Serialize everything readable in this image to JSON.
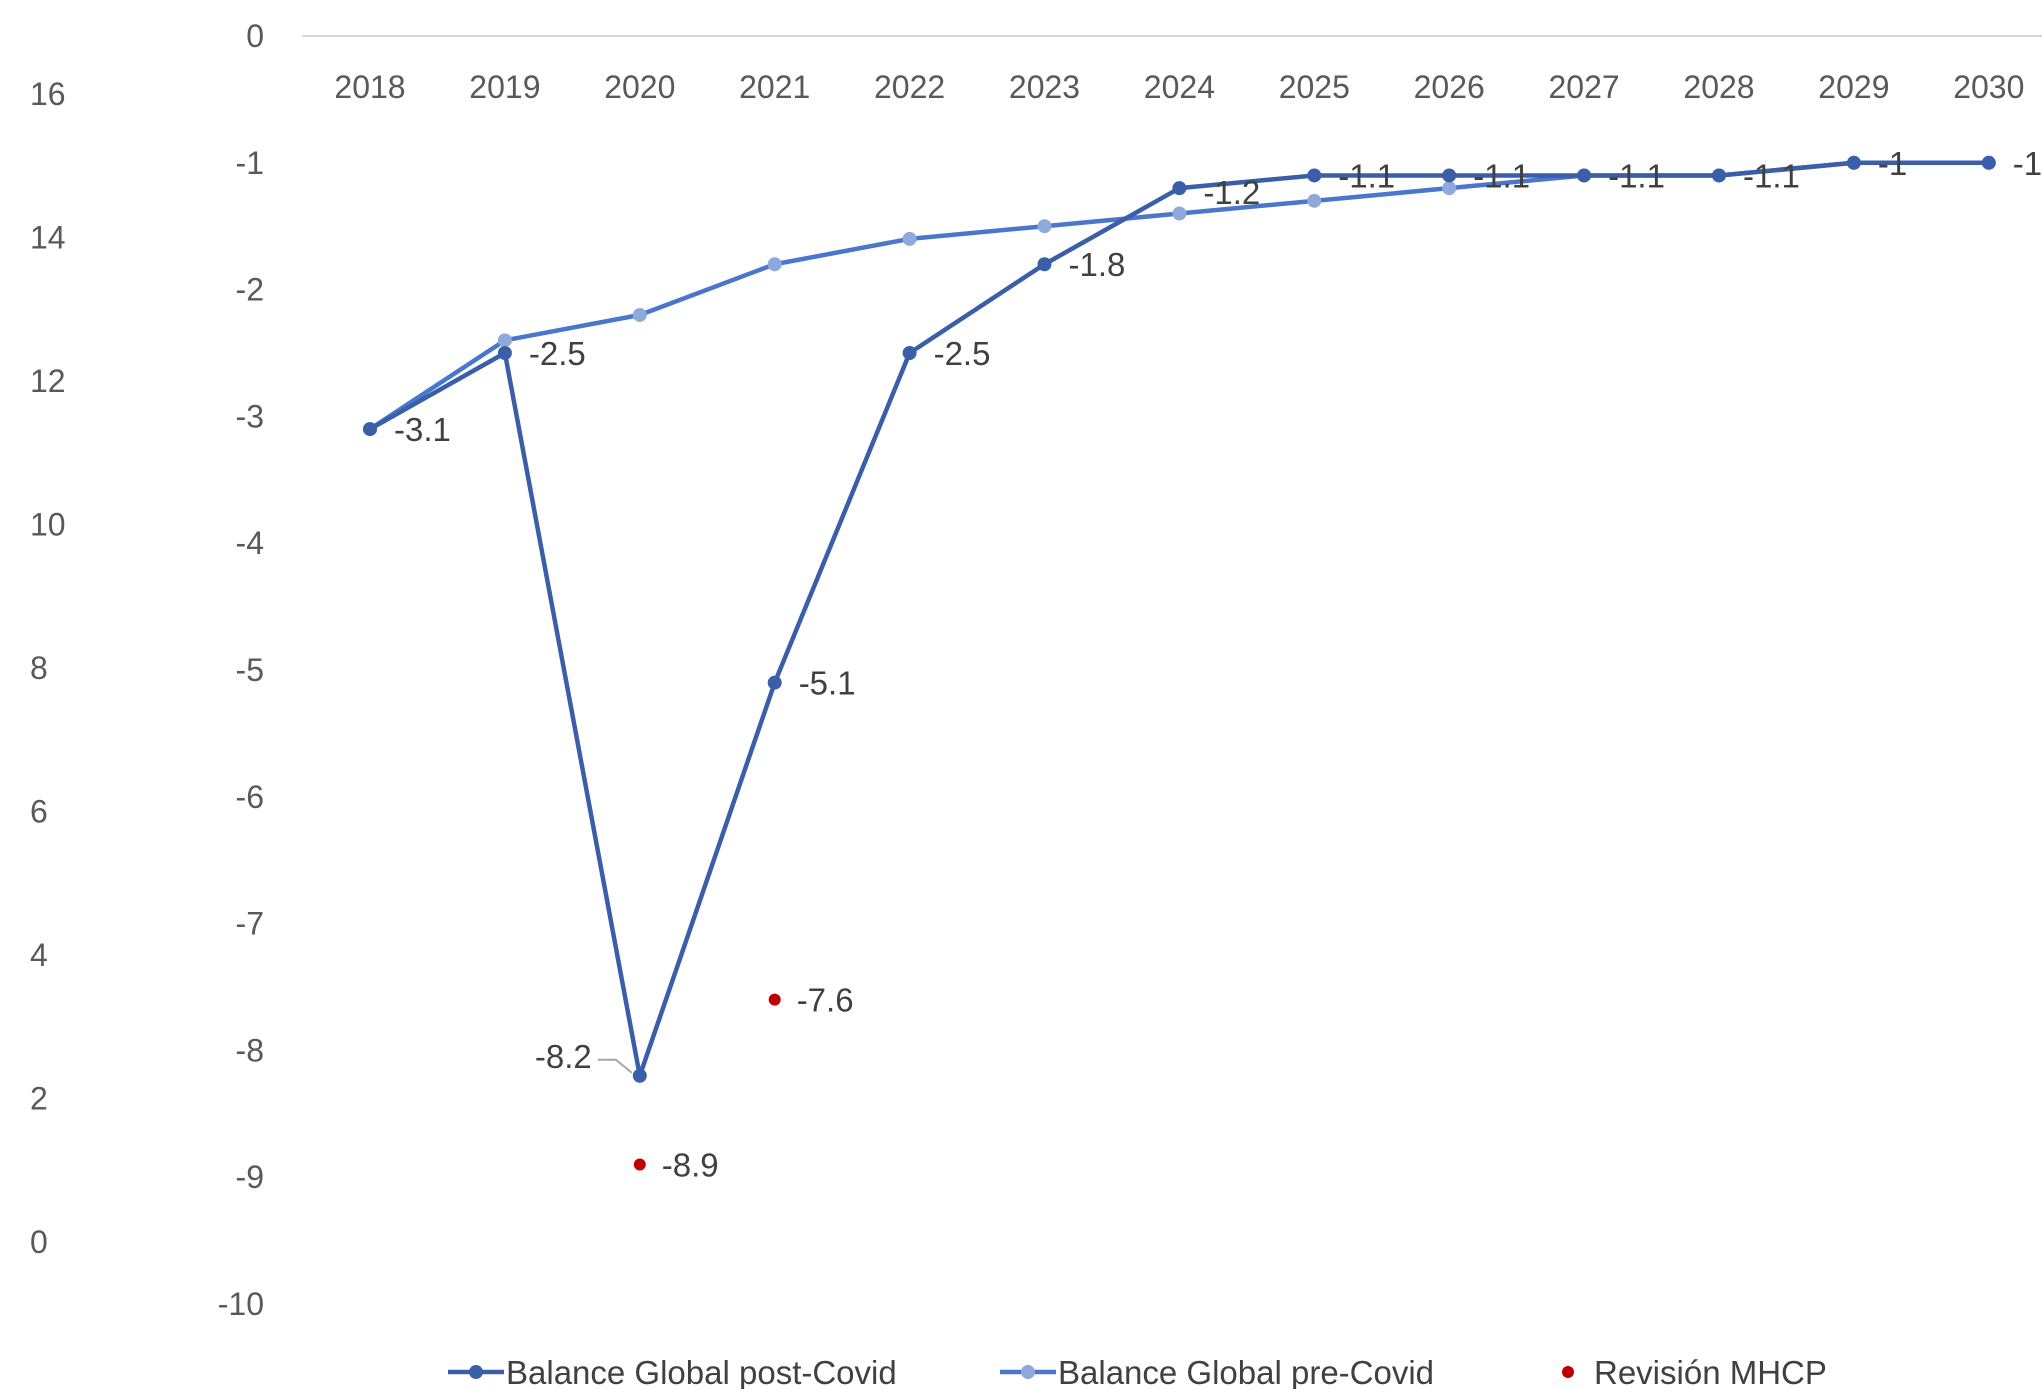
{
  "chart_data": {
    "type": "line",
    "title": "",
    "xlabel": "",
    "ylabel": "",
    "categories": [
      "2018",
      "2019",
      "2020",
      "2021",
      "2022",
      "2023",
      "2024",
      "2025",
      "2026",
      "2027",
      "2028",
      "2029",
      "2030"
    ],
    "y_left": {
      "ticks": [
        "16",
        "14",
        "12",
        "10",
        "8",
        "6",
        "4",
        "2",
        "0"
      ],
      "range": [
        0,
        16
      ]
    },
    "y_right": {
      "ticks": [
        "0",
        "-1",
        "-2",
        "-3",
        "-4",
        "-5",
        "-6",
        "-7",
        "-8",
        "-9",
        "-10"
      ],
      "range": [
        -10,
        0
      ]
    },
    "grid": false,
    "legend_position": "bottom",
    "series": [
      {
        "name": "Balance Global post-Covid",
        "color": "#3a5ea8",
        "values": [
          -3.1,
          -2.5,
          -8.2,
          -5.1,
          -2.5,
          -1.8,
          -1.2,
          -1.1,
          -1.1,
          -1.1,
          -1.1,
          -1.0,
          -1.0
        ],
        "labels": [
          "-3.1",
          "-2.5",
          "-8.2",
          "-5.1",
          "-2.5",
          "-1.8",
          "-1.2",
          "-1.1",
          "-1.1",
          "-1.1",
          "-1.1",
          "-1",
          "-1"
        ]
      },
      {
        "name": "Balance Global pre-Covid",
        "color": "#4a77cc",
        "marker_color": "#8fa9db",
        "values": [
          -3.1,
          -2.4,
          -2.2,
          -1.8,
          -1.6,
          -1.5,
          -1.4,
          -1.3,
          -1.2,
          -1.1,
          -1.1,
          -1.0,
          -1.0
        ]
      },
      {
        "name": "Revisión MHCP",
        "color": "#c00000",
        "points": [
          {
            "x": "2020",
            "y": -8.9,
            "label": "-8.9"
          },
          {
            "x": "2021",
            "y": -7.6,
            "label": "-7.6"
          }
        ]
      }
    ]
  }
}
